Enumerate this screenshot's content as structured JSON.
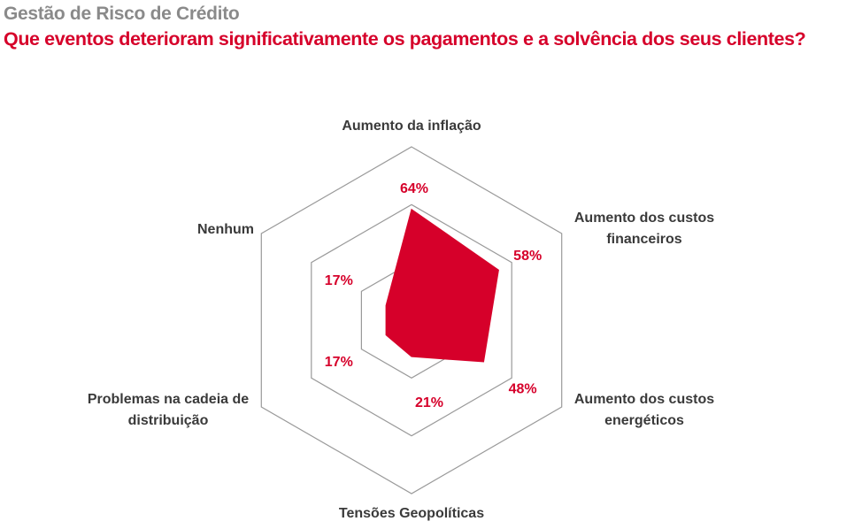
{
  "header": {
    "subtitle": "Gestão de Risco de Crédito",
    "title": "Que eventos deterioram significativamente os pagamentos e a solvência dos seus clientes?"
  },
  "chart_data": {
    "type": "radar",
    "title": "Que eventos deterioram significativamente os pagamentos e a solvência dos seus clientes?",
    "subtitle": "Gestão de Risco de Crédito",
    "categories": [
      [
        "Aumento da inflação"
      ],
      [
        "Aumento dos custos",
        "financeiros"
      ],
      [
        "Aumento dos custos",
        "energéticos"
      ],
      [
        "Tensões Geopolíticas"
      ],
      [
        "Problemas na cadeia de",
        "distribuição"
      ],
      [
        "Nenhum"
      ]
    ],
    "values": [
      64,
      58,
      48,
      21,
      17,
      17
    ],
    "value_labels": [
      "64%",
      "58%",
      "48%",
      "21%",
      "17%",
      "17%"
    ],
    "rmax": 100,
    "grid_levels": [
      33.33,
      66.67,
      100
    ],
    "series_color": "#d6002a",
    "grid_color": "#9a9a9a"
  }
}
